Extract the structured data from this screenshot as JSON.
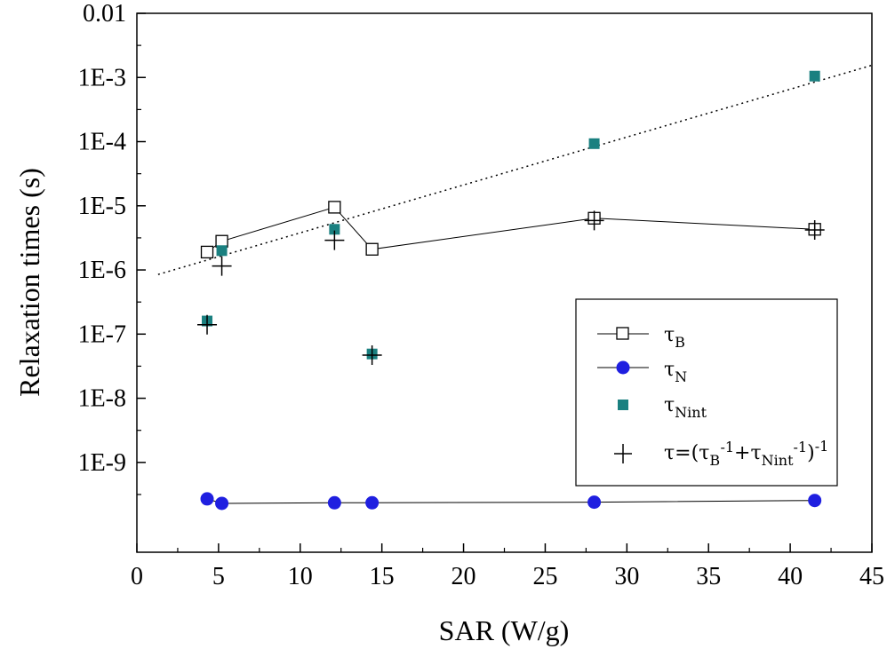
{
  "chart_data": {
    "type": "scatter",
    "xlabel": "SAR (W/g)",
    "ylabel": "Relaxation times (s)",
    "xlim": [
      0,
      45
    ],
    "ylim_log10": [
      -10.4,
      -2
    ],
    "y_scale": "log",
    "grid": false,
    "legend_position": "right",
    "x_ticks": [
      "0",
      "5",
      "10",
      "15",
      "20",
      "25",
      "30",
      "35",
      "40",
      "45"
    ],
    "y_ticks": [
      "0.01",
      "1E-3",
      "1E-4",
      "1E-5",
      "1E-6",
      "1E-7",
      "1E-8",
      "1E-9"
    ],
    "series": [
      {
        "key": "tauB",
        "name": "τB",
        "name_main": "τ",
        "name_sub": "B",
        "marker": "open-square",
        "line": true,
        "color": "#000000",
        "x": [
          4.3,
          5.2,
          12.1,
          14.4,
          28.0,
          41.5
        ],
        "y": [
          1.9e-06,
          2.8e-06,
          9.5e-06,
          2.1e-06,
          6.4e-06,
          4.3e-06
        ]
      },
      {
        "key": "tauN",
        "name": "τN",
        "name_main": "τ",
        "name_sub": "N",
        "marker": "filled-circle",
        "line": true,
        "color": "#1f1fe0",
        "x": [
          4.3,
          5.2,
          12.1,
          14.4,
          28.0,
          41.5
        ],
        "y": [
          2.7e-10,
          2.3e-10,
          2.35e-10,
          2.35e-10,
          2.4e-10,
          2.55e-10
        ]
      },
      {
        "key": "tauNint",
        "name": "τNint",
        "name_main": "τ",
        "name_sub": "Nint",
        "marker": "filled-square",
        "line": false,
        "color": "#1a8080",
        "x": [
          4.3,
          5.2,
          12.1,
          14.4,
          28.0,
          41.5
        ],
        "y": [
          1.6e-07,
          2e-06,
          4.3e-06,
          4.9e-08,
          9.3e-05,
          0.00105
        ]
      },
      {
        "key": "tauEff",
        "name": "τ=(τB-1+τNint-1)-1",
        "marker": "plus",
        "line": false,
        "color": "#000000",
        "x": [
          4.3,
          5.2,
          12.1,
          14.4,
          28.0,
          41.5
        ],
        "y": [
          1.4e-07,
          1.15e-06,
          2.9e-06,
          4.7e-08,
          5.9e-06,
          4.2e-06
        ]
      }
    ],
    "fit_line": {
      "style": "dotted",
      "x": [
        1.3,
        45
      ],
      "y": [
        8.5e-07,
        0.00155
      ]
    },
    "legend": {
      "tau_main": "τ",
      "eq": "=(",
      "b_sub": "B",
      "m1": "-1",
      "plus": "+",
      "nint_sub": "Nint",
      "close": ")"
    }
  }
}
